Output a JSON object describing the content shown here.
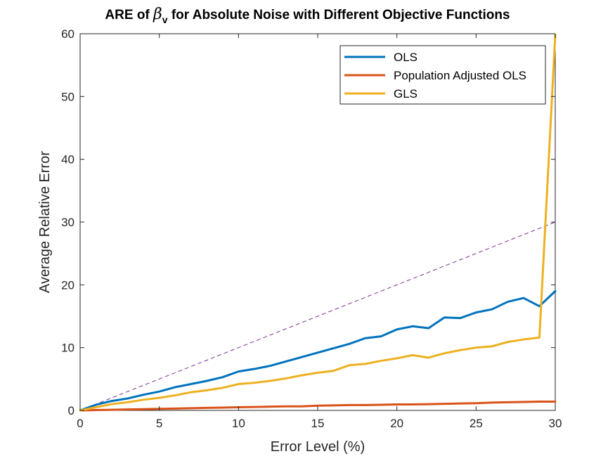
{
  "title": {
    "prefix": "ARE of ",
    "symbol": "β",
    "subscript": "v",
    "suffix": " for Absolute Noise with Different Objective Functions"
  },
  "chart_data": {
    "type": "line",
    "xlabel": "Error Level (%)",
    "ylabel": "Average Relative Error",
    "xlim": [
      0,
      30
    ],
    "ylim": [
      0,
      60
    ],
    "xticks": [
      0,
      5,
      10,
      15,
      20,
      25,
      30
    ],
    "yticks": [
      0,
      10,
      20,
      30,
      40,
      50,
      60
    ],
    "legend_position": "top-right",
    "x": [
      0,
      1,
      2,
      3,
      4,
      5,
      6,
      7,
      8,
      9,
      10,
      11,
      12,
      13,
      14,
      15,
      16,
      17,
      18,
      19,
      20,
      21,
      22,
      23,
      24,
      25,
      26,
      27,
      28,
      29,
      30
    ],
    "series": [
      {
        "name": "OLS",
        "color": "#0072BD",
        "values": [
          0.0,
          0.9,
          1.5,
          1.9,
          2.5,
          3.0,
          3.7,
          4.2,
          4.7,
          5.3,
          6.2,
          6.6,
          7.1,
          7.8,
          8.5,
          9.2,
          9.9,
          10.6,
          11.5,
          11.8,
          12.9,
          13.4,
          13.1,
          14.8,
          14.7,
          15.6,
          16.1,
          17.3,
          17.9,
          16.6,
          19.0
        ]
      },
      {
        "name": "Population Adjusted OLS",
        "color": "#D95319",
        "values": [
          0.0,
          0.05,
          0.1,
          0.15,
          0.2,
          0.25,
          0.3,
          0.35,
          0.4,
          0.45,
          0.5,
          0.55,
          0.6,
          0.65,
          0.65,
          0.75,
          0.8,
          0.85,
          0.85,
          0.9,
          0.95,
          0.95,
          1.0,
          1.05,
          1.1,
          1.15,
          1.25,
          1.3,
          1.35,
          1.4,
          1.4
        ]
      },
      {
        "name": "GLS",
        "color": "#EDB120",
        "values": [
          0.0,
          0.5,
          1.0,
          1.3,
          1.7,
          2.0,
          2.4,
          2.9,
          3.2,
          3.6,
          4.2,
          4.4,
          4.7,
          5.1,
          5.6,
          6.0,
          6.3,
          7.2,
          7.4,
          7.9,
          8.3,
          8.8,
          8.4,
          9.1,
          9.6,
          10.0,
          10.2,
          10.9,
          11.3,
          11.6,
          59.8
        ]
      }
    ],
    "reference_line": {
      "style": "dashed",
      "color": "#7E2F8E",
      "x": [
        0,
        30
      ],
      "y": [
        0,
        30
      ]
    }
  }
}
